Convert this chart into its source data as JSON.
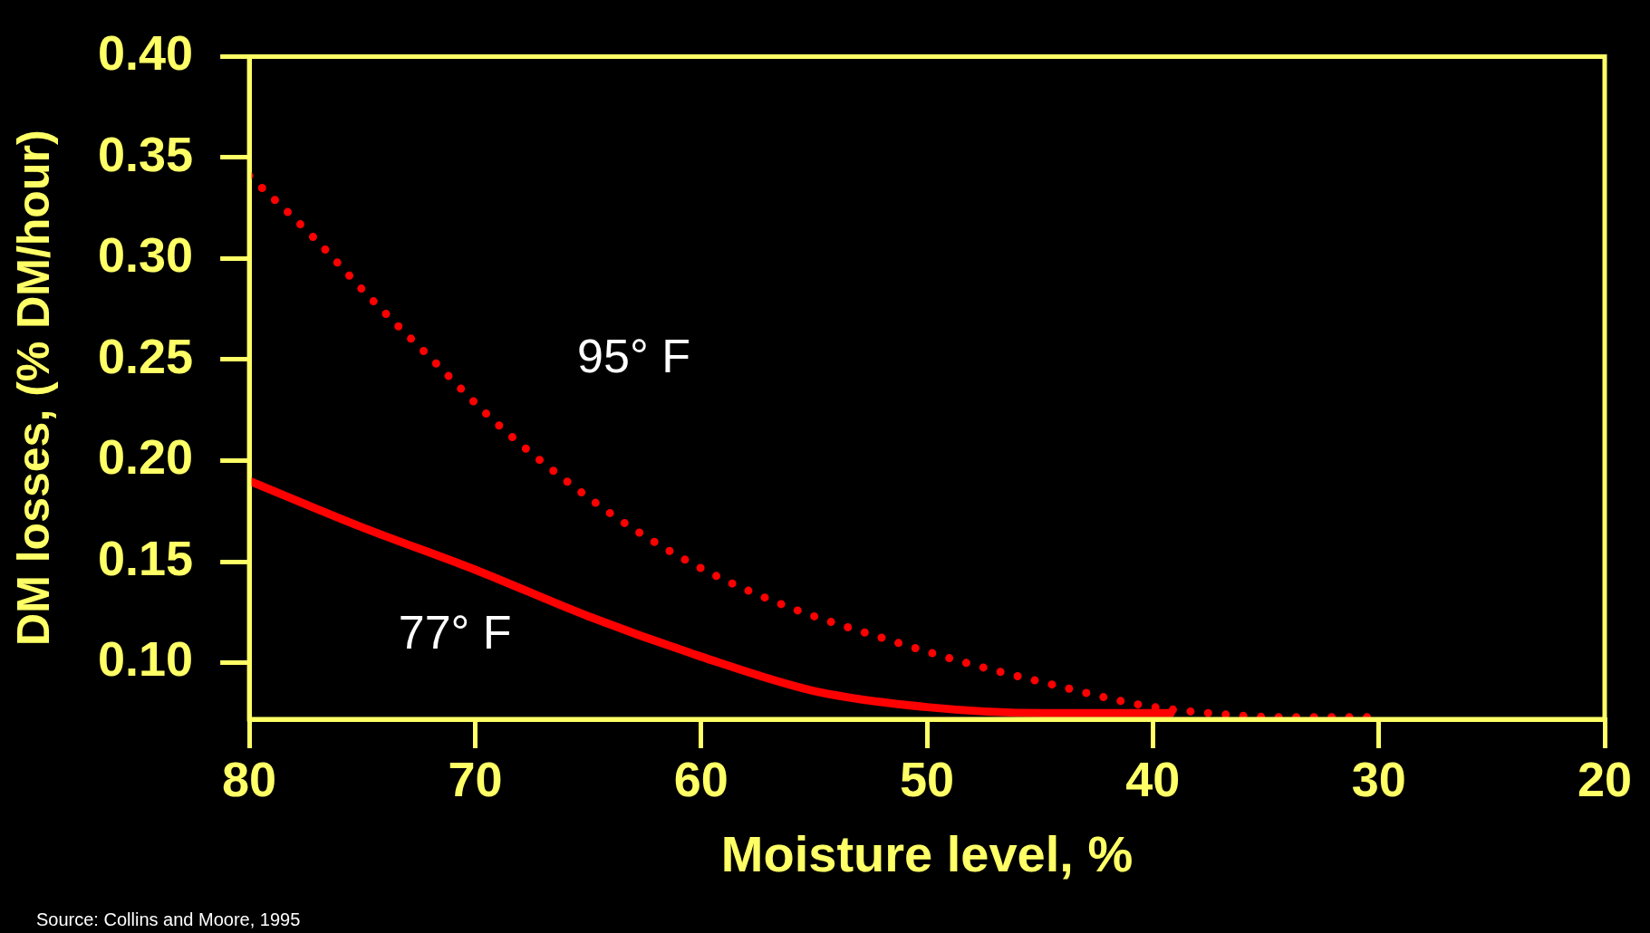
{
  "chart_data": {
    "type": "line",
    "xlabel": "Moisture level, %",
    "ylabel": "DM losses, (% DM/hour)",
    "xlim": [
      80,
      20
    ],
    "xticks": [
      80,
      70,
      60,
      50,
      40,
      30,
      20
    ],
    "ylim": [
      0.072,
      0.4
    ],
    "yticks": [
      {
        "value": 0.1,
        "label": "0.10"
      },
      {
        "value": 0.15,
        "label": "0.15"
      },
      {
        "value": 0.2,
        "label": "0.20"
      },
      {
        "value": 0.25,
        "label": "0.25"
      },
      {
        "value": 0.3,
        "label": "0.30"
      },
      {
        "value": 0.35,
        "label": "0.35"
      },
      {
        "value": 0.4,
        "label": "0.40"
      }
    ],
    "grid": false,
    "legend": false,
    "marker": "none",
    "series": [
      {
        "name": "95° F",
        "color": "#ff0000",
        "line_style": "dotted",
        "x": [
          80,
          77.2,
          74.6,
          71.9,
          69.2,
          66.2,
          63.1,
          59.7,
          56,
          52.2,
          48.3,
          44.4,
          40.5,
          37.5,
          34.4,
          30.4
        ],
        "values": [
          0.341,
          0.311,
          0.28,
          0.25,
          0.22,
          0.192,
          0.167,
          0.145,
          0.127,
          0.113,
          0.1,
          0.089,
          0.079,
          0.075,
          0.073,
          0.073
        ]
      },
      {
        "name": "77° F",
        "color": "#ff0000",
        "line_style": "solid",
        "x": [
          80,
          75,
          70,
          65,
          60,
          55,
          50,
          44.8,
          39.2
        ],
        "values": [
          0.19,
          0.167,
          0.146,
          0.123,
          0.103,
          0.086,
          0.078,
          0.075,
          0.075
        ]
      }
    ],
    "annotations": [
      "Source: Collins and Moore, 1995"
    ]
  }
}
